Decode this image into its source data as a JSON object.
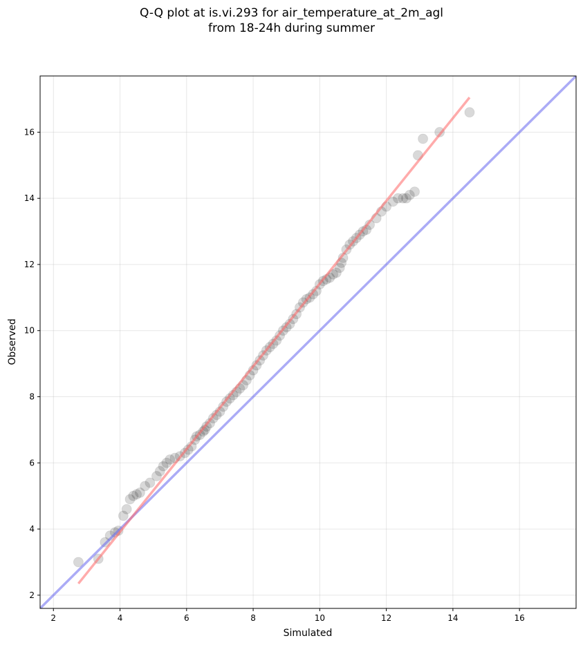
{
  "chart_data": {
    "type": "scatter",
    "title": "Q-Q plot at is.vi.293 for air_temperature_at_2m_agl",
    "subtitle": "from 18-24h during summer",
    "xlabel": "Simulated",
    "ylabel": "Observed",
    "xlim": [
      1.6,
      17.7
    ],
    "ylim": [
      1.6,
      17.7
    ],
    "xticks": [
      2,
      4,
      6,
      8,
      10,
      12,
      14,
      16
    ],
    "yticks": [
      2,
      4,
      6,
      8,
      10,
      12,
      14,
      16
    ],
    "grid": true,
    "colors": {
      "points": "#000000",
      "fit_line": "#ff6666",
      "identity_line": "#6666ee"
    },
    "fit_line": {
      "x": [
        2.75,
        14.5
      ],
      "y": [
        2.35,
        17.05
      ]
    },
    "identity_line": {
      "x": [
        1.6,
        17.7
      ],
      "y": [
        1.6,
        17.7
      ]
    },
    "points": {
      "x": [
        2.75,
        3.35,
        3.55,
        3.7,
        3.85,
        3.95,
        4.1,
        4.2,
        4.3,
        4.4,
        4.5,
        4.6,
        4.75,
        4.9,
        5.1,
        5.2,
        5.3,
        5.4,
        5.5,
        5.65,
        5.8,
        5.95,
        6.05,
        6.15,
        6.25,
        6.3,
        6.4,
        6.5,
        6.55,
        6.6,
        6.7,
        6.8,
        6.9,
        7.0,
        7.1,
        7.2,
        7.3,
        7.4,
        7.5,
        7.6,
        7.7,
        7.8,
        7.9,
        8.0,
        8.1,
        8.2,
        8.3,
        8.4,
        8.5,
        8.6,
        8.7,
        8.8,
        8.9,
        9.0,
        9.1,
        9.2,
        9.3,
        9.4,
        9.5,
        9.6,
        9.7,
        9.8,
        9.9,
        10.0,
        10.1,
        10.2,
        10.3,
        10.4,
        10.5,
        10.6,
        10.65,
        10.7,
        10.8,
        10.9,
        11.0,
        11.1,
        11.2,
        11.3,
        11.4,
        11.5,
        11.7,
        11.85,
        12.0,
        12.2,
        12.35,
        12.5,
        12.6,
        12.7,
        12.85,
        12.95,
        13.1,
        13.6,
        14.5
      ],
      "y": [
        3.0,
        3.1,
        3.6,
        3.8,
        3.9,
        3.95,
        4.4,
        4.6,
        4.9,
        5.0,
        5.05,
        5.1,
        5.3,
        5.4,
        5.6,
        5.75,
        5.9,
        6.0,
        6.1,
        6.15,
        6.2,
        6.3,
        6.4,
        6.5,
        6.7,
        6.8,
        6.85,
        6.95,
        7.0,
        7.1,
        7.2,
        7.35,
        7.45,
        7.55,
        7.7,
        7.85,
        7.95,
        8.05,
        8.15,
        8.25,
        8.35,
        8.5,
        8.65,
        8.8,
        8.95,
        9.1,
        9.25,
        9.4,
        9.5,
        9.6,
        9.7,
        9.85,
        10.0,
        10.1,
        10.2,
        10.35,
        10.5,
        10.7,
        10.85,
        10.95,
        11.0,
        11.1,
        11.2,
        11.4,
        11.5,
        11.55,
        11.6,
        11.7,
        11.75,
        11.9,
        12.05,
        12.2,
        12.45,
        12.6,
        12.7,
        12.8,
        12.9,
        13.0,
        13.05,
        13.2,
        13.4,
        13.6,
        13.75,
        13.9,
        14.0,
        14.0,
        14.0,
        14.1,
        14.2,
        15.3,
        15.8,
        16.0,
        16.6
      ]
    }
  }
}
